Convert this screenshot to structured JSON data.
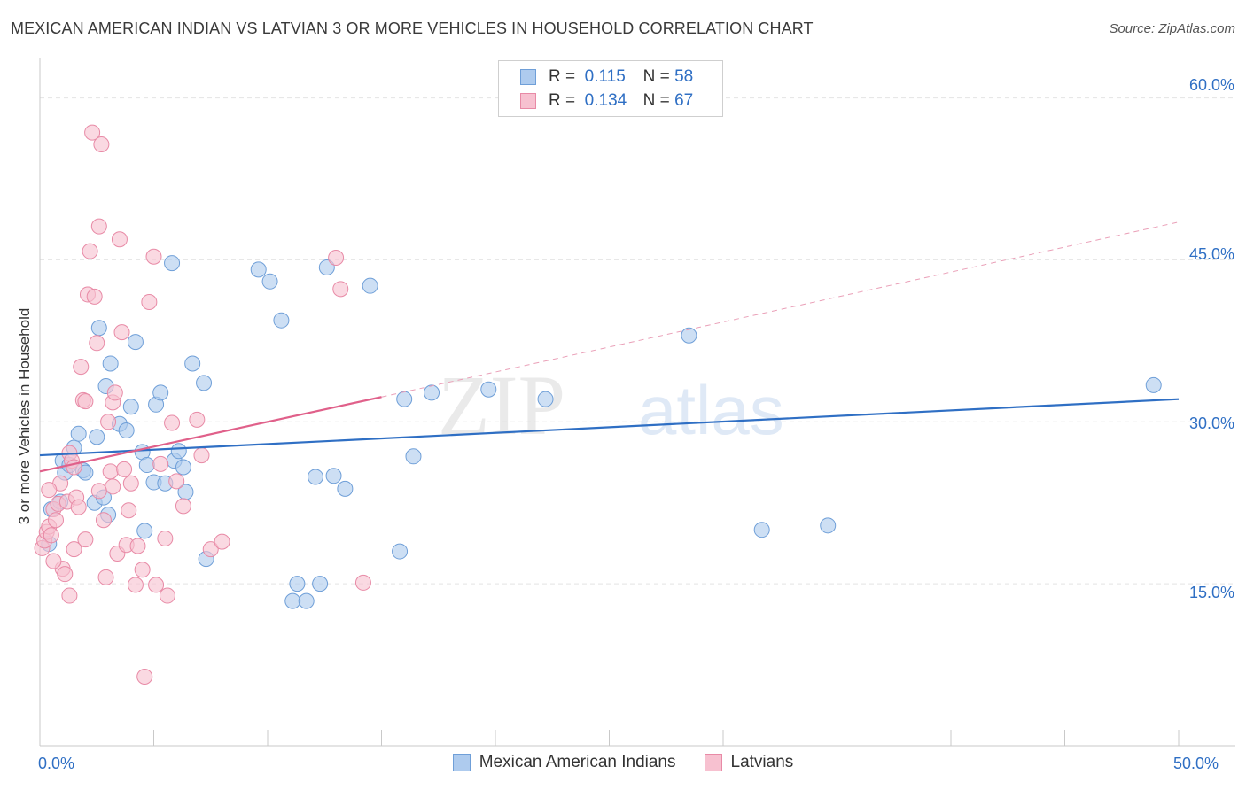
{
  "title": "MEXICAN AMERICAN INDIAN VS LATVIAN 3 OR MORE VEHICLES IN HOUSEHOLD CORRELATION CHART",
  "source": "Source: ZipAtlas.com",
  "watermark": {
    "zip": "ZIP",
    "atlas": "atlas"
  },
  "legend": {
    "r_label": "R =",
    "n_label": "N =",
    "rows": [
      {
        "r": "0.115",
        "n": "58",
        "fill": "#aecbee",
        "stroke": "#6f9fd8"
      },
      {
        "r": "0.134",
        "n": "67",
        "fill": "#f7c1d0",
        "stroke": "#e88aa6"
      }
    ]
  },
  "chart_data": {
    "type": "scatter",
    "title": "MEXICAN AMERICAN INDIAN VS LATVIAN 3 OR MORE VEHICLES IN HOUSEHOLD CORRELATION CHART",
    "xlabel": "",
    "ylabel": "3 or more Vehicles in Household",
    "xlim": [
      0,
      50
    ],
    "ylim": [
      0,
      63
    ],
    "x_tick_labels": [
      "0.0%",
      "50.0%"
    ],
    "y_ticks": [
      15,
      30,
      45,
      60
    ],
    "y_tick_labels": [
      "15.0%",
      "30.0%",
      "45.0%",
      "60.0%"
    ],
    "grid": true,
    "legend_position": "top-center",
    "series": [
      {
        "name": "Mexican American Indians",
        "color": "#6f9fd8",
        "fill": "#aecbee",
        "r": 0.115,
        "n": 58,
        "trend": {
          "x": [
            0,
            50
          ],
          "y": [
            26.9,
            32.1
          ],
          "style": "solid"
        },
        "points": [
          [
            0.5,
            21.9
          ],
          [
            0.9,
            22.6
          ],
          [
            1.0,
            26.4
          ],
          [
            1.1,
            25.3
          ],
          [
            1.3,
            26.0
          ],
          [
            1.5,
            27.6
          ],
          [
            1.7,
            28.9
          ],
          [
            1.9,
            25.5
          ],
          [
            2.0,
            25.3
          ],
          [
            2.4,
            22.5
          ],
          [
            2.5,
            28.6
          ],
          [
            2.6,
            38.7
          ],
          [
            2.8,
            23.0
          ],
          [
            2.9,
            33.3
          ],
          [
            3.0,
            21.4
          ],
          [
            3.1,
            35.4
          ],
          [
            3.5,
            29.8
          ],
          [
            3.8,
            29.2
          ],
          [
            4.0,
            31.4
          ],
          [
            4.2,
            37.4
          ],
          [
            4.5,
            27.2
          ],
          [
            4.6,
            19.9
          ],
          [
            4.7,
            26.0
          ],
          [
            5.0,
            24.4
          ],
          [
            5.1,
            31.6
          ],
          [
            5.3,
            32.7
          ],
          [
            5.5,
            24.3
          ],
          [
            5.8,
            44.7
          ],
          [
            5.9,
            26.4
          ],
          [
            6.1,
            27.3
          ],
          [
            6.3,
            25.8
          ],
          [
            6.4,
            23.5
          ],
          [
            6.7,
            35.4
          ],
          [
            7.2,
            33.6
          ],
          [
            7.3,
            17.3
          ],
          [
            9.6,
            44.1
          ],
          [
            10.1,
            43.0
          ],
          [
            10.6,
            39.4
          ],
          [
            11.1,
            13.4
          ],
          [
            11.3,
            15.0
          ],
          [
            11.7,
            13.4
          ],
          [
            12.1,
            24.9
          ],
          [
            12.3,
            15.0
          ],
          [
            12.6,
            44.3
          ],
          [
            12.9,
            25.0
          ],
          [
            13.4,
            23.8
          ],
          [
            14.5,
            42.6
          ],
          [
            15.8,
            18.0
          ],
          [
            16.0,
            32.1
          ],
          [
            16.4,
            26.8
          ],
          [
            17.2,
            32.7
          ],
          [
            19.7,
            33.0
          ],
          [
            22.2,
            32.1
          ],
          [
            28.5,
            38.0
          ],
          [
            31.7,
            20.0
          ],
          [
            34.6,
            20.4
          ],
          [
            48.9,
            33.4
          ],
          [
            0.4,
            18.7
          ]
        ]
      },
      {
        "name": "Latvians",
        "color": "#e88aa6",
        "fill": "#f7c1d0",
        "r": 0.134,
        "n": 67,
        "trend": {
          "x": [
            0,
            15
          ],
          "y": [
            25.4,
            32.3
          ],
          "style": "solid"
        },
        "trend_extension": {
          "x": [
            15,
            50
          ],
          "y": [
            32.3,
            48.5
          ],
          "style": "dashed"
        },
        "points": [
          [
            0.1,
            18.3
          ],
          [
            0.2,
            19.0
          ],
          [
            0.3,
            19.8
          ],
          [
            0.4,
            20.3
          ],
          [
            0.5,
            19.5
          ],
          [
            0.6,
            21.9
          ],
          [
            0.7,
            20.9
          ],
          [
            0.8,
            22.4
          ],
          [
            0.9,
            24.3
          ],
          [
            1.0,
            16.4
          ],
          [
            1.1,
            15.9
          ],
          [
            1.2,
            22.6
          ],
          [
            1.3,
            27.1
          ],
          [
            1.4,
            26.4
          ],
          [
            1.5,
            25.8
          ],
          [
            1.6,
            23.0
          ],
          [
            1.7,
            22.1
          ],
          [
            1.8,
            35.1
          ],
          [
            1.9,
            32.0
          ],
          [
            2.0,
            31.9
          ],
          [
            2.1,
            41.8
          ],
          [
            2.2,
            45.8
          ],
          [
            2.3,
            56.8
          ],
          [
            2.4,
            41.6
          ],
          [
            2.5,
            37.3
          ],
          [
            2.6,
            48.1
          ],
          [
            2.7,
            55.7
          ],
          [
            2.8,
            20.9
          ],
          [
            2.9,
            15.6
          ],
          [
            3.0,
            30.0
          ],
          [
            3.1,
            25.4
          ],
          [
            3.2,
            31.8
          ],
          [
            3.3,
            32.7
          ],
          [
            3.4,
            17.8
          ],
          [
            3.5,
            46.9
          ],
          [
            3.6,
            38.3
          ],
          [
            3.7,
            25.6
          ],
          [
            3.8,
            18.6
          ],
          [
            3.9,
            21.8
          ],
          [
            4.0,
            24.3
          ],
          [
            4.2,
            14.9
          ],
          [
            4.3,
            18.5
          ],
          [
            4.5,
            16.3
          ],
          [
            4.6,
            6.4
          ],
          [
            4.8,
            41.1
          ],
          [
            5.0,
            45.3
          ],
          [
            5.1,
            14.9
          ],
          [
            5.3,
            26.1
          ],
          [
            5.5,
            19.2
          ],
          [
            5.6,
            13.9
          ],
          [
            5.8,
            29.9
          ],
          [
            6.0,
            24.5
          ],
          [
            6.3,
            22.2
          ],
          [
            6.9,
            30.2
          ],
          [
            7.1,
            26.9
          ],
          [
            7.5,
            18.2
          ],
          [
            8.0,
            18.9
          ],
          [
            13.0,
            45.2
          ],
          [
            13.2,
            42.3
          ],
          [
            14.2,
            15.1
          ],
          [
            0.4,
            23.7
          ],
          [
            1.3,
            13.9
          ],
          [
            2.0,
            19.1
          ],
          [
            0.6,
            17.1
          ],
          [
            1.5,
            18.2
          ],
          [
            3.2,
            24.0
          ],
          [
            2.6,
            23.6
          ]
        ]
      }
    ]
  }
}
